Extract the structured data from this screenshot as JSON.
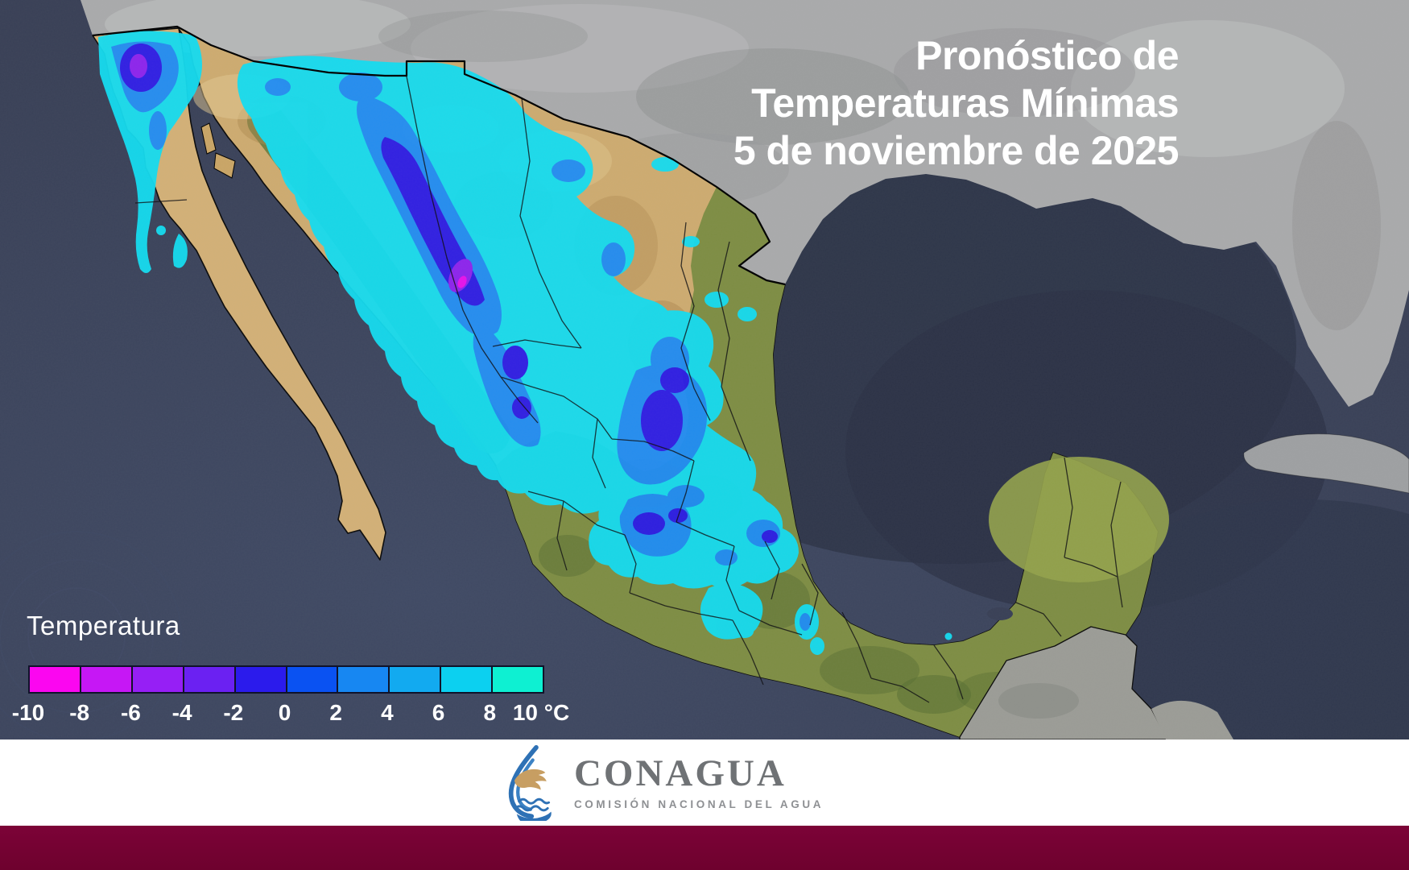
{
  "title": {
    "line1": "Pronóstico de",
    "line2": "Temperaturas Mínimas",
    "line3": "5 de noviembre de 2025"
  },
  "legend": {
    "title": "Temperatura",
    "unit": "°C",
    "ticks": [
      "-10",
      "-8",
      "-6",
      "-4",
      "-2",
      "0",
      "2",
      "4",
      "6",
      "8",
      "10"
    ],
    "colors": [
      "#fb06f0",
      "#c617f5",
      "#961ff5",
      "#6b21f2",
      "#2b1bec",
      "#0a52f2",
      "#1787f2",
      "#12aaf0",
      "#0cd0f0",
      "#0ef0d2"
    ]
  },
  "footer": {
    "org_name": "CONAGUA",
    "org_subtitle": "COMISIÓN NACIONAL DEL AGUA"
  },
  "map": {
    "colors": {
      "ocean": "#394056",
      "gulf_of_mexico": "#2e3548",
      "us_land_gray": "#a9aaab",
      "neighbor_land_gray": "#9b9c96",
      "desert_tan": "#cdab70",
      "vegetation_green": "#7e8d44",
      "overlay_cyan": "#14dcf0",
      "overlay_blue": "#1e8cf5",
      "overlay_dark_blue": "#2a1ae8",
      "overlay_purple": "#8a1ff2",
      "bottom_bar_maroon": "#730334"
    }
  }
}
